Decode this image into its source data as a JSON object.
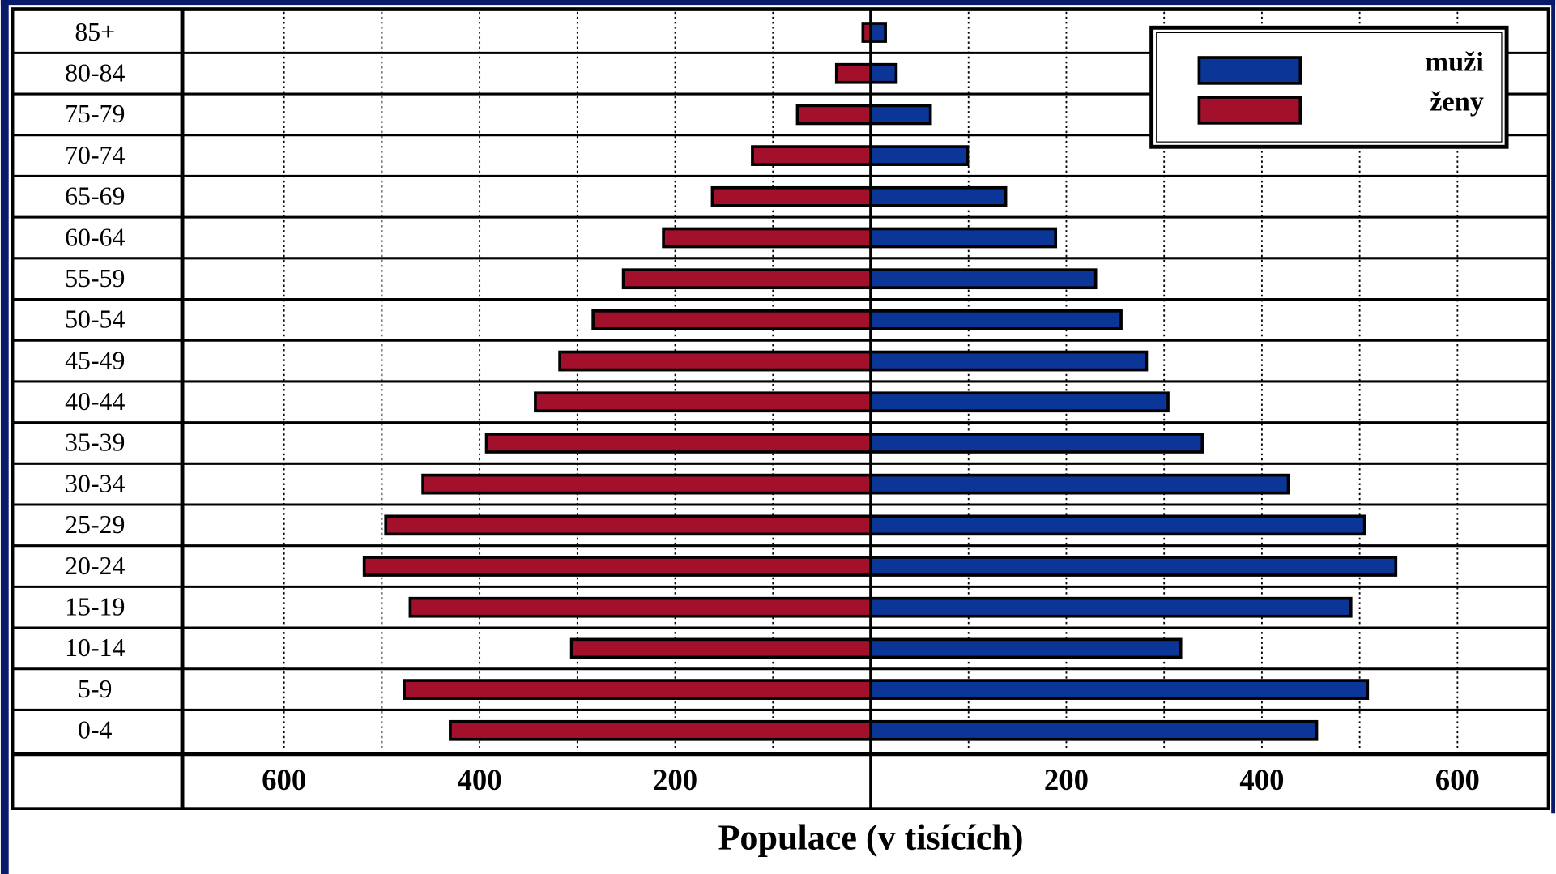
{
  "chart_data": {
    "type": "pyramid",
    "xlabel": "Populace (v tisících)",
    "categories": [
      "0-4",
      "5-9",
      "10-14",
      "15-19",
      "20-24",
      "25-29",
      "30-34",
      "35-39",
      "40-44",
      "45-49",
      "50-54",
      "55-59",
      "60-64",
      "65-69",
      "70-74",
      "75-79",
      "80-84",
      "85+"
    ],
    "series": [
      {
        "name": "muži",
        "color": "#0b3597",
        "side": "right",
        "values": [
          456,
          508,
          317,
          491,
          537,
          505,
          427,
          339,
          304,
          282,
          256,
          230,
          189,
          138,
          99,
          61,
          26,
          15
        ]
      },
      {
        "name": "ženy",
        "color": "#a3102c",
        "side": "left",
        "values": [
          430,
          477,
          306,
          471,
          518,
          496,
          458,
          393,
          343,
          318,
          284,
          253,
          212,
          162,
          121,
          75,
          35,
          8
        ]
      }
    ],
    "xlim": [
      -700,
      700
    ],
    "xticks": [
      {
        "value": -600,
        "label": "600"
      },
      {
        "value": -400,
        "label": "400"
      },
      {
        "value": -200,
        "label": "200"
      },
      200,
      400,
      600
    ],
    "minor_xticks": [
      -500,
      -300,
      -100,
      100,
      300,
      500
    ],
    "grid": true,
    "legend": "top-right"
  }
}
